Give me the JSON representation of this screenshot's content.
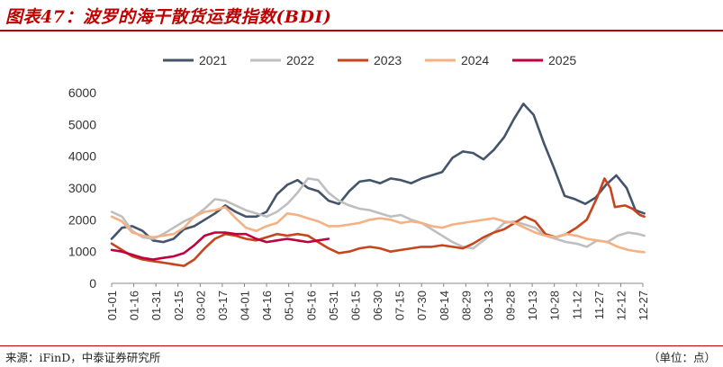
{
  "header": {
    "title": "图表47：波罗的海干散货运费指数(BDI)"
  },
  "footer": {
    "source": "来源：iFinD，中泰证券研究所",
    "unit": "（单位：点）"
  },
  "chart_data": {
    "type": "line",
    "title": "",
    "xlabel": "",
    "ylabel": "",
    "ylim": [
      0,
      6000
    ],
    "yticks": [
      0,
      1000,
      2000,
      3000,
      4000,
      5000,
      6000
    ],
    "x_axis": "day of year (MM-DD)",
    "xticks": [
      "01-01",
      "01-16",
      "01-31",
      "02-15",
      "03-02",
      "03-17",
      "04-01",
      "04-16",
      "05-01",
      "05-16",
      "05-31",
      "06-15",
      "06-30",
      "07-15",
      "07-30",
      "08-14",
      "08-29",
      "09-13",
      "09-28",
      "10-13",
      "10-28",
      "11-12",
      "11-27",
      "12-12",
      "12-27"
    ],
    "grid": false,
    "legend": "top",
    "series": [
      {
        "name": "2021",
        "color": "#44546a",
        "points": [
          [
            "01-01",
            1400
          ],
          [
            "01-08",
            1750
          ],
          [
            "01-15",
            1800
          ],
          [
            "01-22",
            1650
          ],
          [
            "01-29",
            1350
          ],
          [
            "02-05",
            1300
          ],
          [
            "02-12",
            1400
          ],
          [
            "02-19",
            1700
          ],
          [
            "02-26",
            1800
          ],
          [
            "03-05",
            2000
          ],
          [
            "03-12",
            2200
          ],
          [
            "03-19",
            2450
          ],
          [
            "03-26",
            2250
          ],
          [
            "04-02",
            2100
          ],
          [
            "04-09",
            2100
          ],
          [
            "04-16",
            2250
          ],
          [
            "04-23",
            2800
          ],
          [
            "04-30",
            3100
          ],
          [
            "05-07",
            3250
          ],
          [
            "05-14",
            3000
          ],
          [
            "05-21",
            2900
          ],
          [
            "05-28",
            2600
          ],
          [
            "06-04",
            2500
          ],
          [
            "06-11",
            2900
          ],
          [
            "06-18",
            3200
          ],
          [
            "06-25",
            3250
          ],
          [
            "07-02",
            3150
          ],
          [
            "07-09",
            3300
          ],
          [
            "07-16",
            3250
          ],
          [
            "07-23",
            3150
          ],
          [
            "07-30",
            3300
          ],
          [
            "08-06",
            3400
          ],
          [
            "08-13",
            3500
          ],
          [
            "08-20",
            3950
          ],
          [
            "08-27",
            4150
          ],
          [
            "09-03",
            4100
          ],
          [
            "09-10",
            3900
          ],
          [
            "09-17",
            4200
          ],
          [
            "09-24",
            4600
          ],
          [
            "10-01",
            5200
          ],
          [
            "10-07",
            5650
          ],
          [
            "10-14",
            5300
          ],
          [
            "10-21",
            4400
          ],
          [
            "10-28",
            3600
          ],
          [
            "11-04",
            2750
          ],
          [
            "11-11",
            2650
          ],
          [
            "11-18",
            2500
          ],
          [
            "11-25",
            2700
          ],
          [
            "12-02",
            3100
          ],
          [
            "12-09",
            3400
          ],
          [
            "12-16",
            3000
          ],
          [
            "12-22",
            2300
          ],
          [
            "12-28",
            2200
          ]
        ]
      },
      {
        "name": "2022",
        "color": "#bfbfbf",
        "points": [
          [
            "01-01",
            2250
          ],
          [
            "01-08",
            2100
          ],
          [
            "01-15",
            1650
          ],
          [
            "01-22",
            1450
          ],
          [
            "01-29",
            1400
          ],
          [
            "02-05",
            1550
          ],
          [
            "02-12",
            1750
          ],
          [
            "02-19",
            1950
          ],
          [
            "02-26",
            2100
          ],
          [
            "03-05",
            2350
          ],
          [
            "03-12",
            2650
          ],
          [
            "03-19",
            2600
          ],
          [
            "03-26",
            2450
          ],
          [
            "04-02",
            2300
          ],
          [
            "04-09",
            2200
          ],
          [
            "04-16",
            2100
          ],
          [
            "04-23",
            2250
          ],
          [
            "04-30",
            2500
          ],
          [
            "05-07",
            2850
          ],
          [
            "05-14",
            3300
          ],
          [
            "05-21",
            3250
          ],
          [
            "05-28",
            2850
          ],
          [
            "06-04",
            2600
          ],
          [
            "06-11",
            2450
          ],
          [
            "06-18",
            2350
          ],
          [
            "06-25",
            2300
          ],
          [
            "07-02",
            2200
          ],
          [
            "07-09",
            2100
          ],
          [
            "07-16",
            2150
          ],
          [
            "07-23",
            2000
          ],
          [
            "07-30",
            1900
          ],
          [
            "08-06",
            1700
          ],
          [
            "08-13",
            1500
          ],
          [
            "08-20",
            1300
          ],
          [
            "08-27",
            1150
          ],
          [
            "09-03",
            1100
          ],
          [
            "09-10",
            1350
          ],
          [
            "09-17",
            1600
          ],
          [
            "09-24",
            1900
          ],
          [
            "10-01",
            1950
          ],
          [
            "10-08",
            1850
          ],
          [
            "10-15",
            1750
          ],
          [
            "10-22",
            1500
          ],
          [
            "10-29",
            1400
          ],
          [
            "11-05",
            1300
          ],
          [
            "11-12",
            1250
          ],
          [
            "11-19",
            1150
          ],
          [
            "11-26",
            1350
          ],
          [
            "12-03",
            1300
          ],
          [
            "12-10",
            1500
          ],
          [
            "12-17",
            1600
          ],
          [
            "12-24",
            1550
          ],
          [
            "12-28",
            1500
          ]
        ]
      },
      {
        "name": "2023",
        "color": "#c5451c",
        "points": [
          [
            "01-01",
            1250
          ],
          [
            "01-08",
            1050
          ],
          [
            "01-15",
            850
          ],
          [
            "01-22",
            750
          ],
          [
            "01-29",
            700
          ],
          [
            "02-05",
            650
          ],
          [
            "02-12",
            600
          ],
          [
            "02-19",
            550
          ],
          [
            "02-26",
            750
          ],
          [
            "03-05",
            1100
          ],
          [
            "03-12",
            1400
          ],
          [
            "03-19",
            1550
          ],
          [
            "03-26",
            1500
          ],
          [
            "04-02",
            1400
          ],
          [
            "04-09",
            1350
          ],
          [
            "04-16",
            1450
          ],
          [
            "04-23",
            1550
          ],
          [
            "04-30",
            1500
          ],
          [
            "05-07",
            1550
          ],
          [
            "05-14",
            1500
          ],
          [
            "05-21",
            1300
          ],
          [
            "05-28",
            1100
          ],
          [
            "06-04",
            950
          ],
          [
            "06-11",
            1000
          ],
          [
            "06-18",
            1100
          ],
          [
            "06-25",
            1150
          ],
          [
            "07-02",
            1100
          ],
          [
            "07-09",
            1000
          ],
          [
            "07-16",
            1050
          ],
          [
            "07-23",
            1100
          ],
          [
            "07-30",
            1150
          ],
          [
            "08-06",
            1150
          ],
          [
            "08-13",
            1200
          ],
          [
            "08-20",
            1150
          ],
          [
            "08-27",
            1100
          ],
          [
            "09-03",
            1250
          ],
          [
            "09-10",
            1450
          ],
          [
            "09-17",
            1600
          ],
          [
            "09-24",
            1700
          ],
          [
            "10-01",
            1900
          ],
          [
            "10-08",
            2100
          ],
          [
            "10-15",
            1950
          ],
          [
            "10-22",
            1550
          ],
          [
            "10-29",
            1450
          ],
          [
            "11-05",
            1550
          ],
          [
            "11-12",
            1750
          ],
          [
            "11-19",
            2000
          ],
          [
            "11-26",
            2700
          ],
          [
            "12-01",
            3300
          ],
          [
            "12-05",
            3000
          ],
          [
            "12-08",
            2400
          ],
          [
            "12-15",
            2450
          ],
          [
            "12-20",
            2350
          ],
          [
            "12-25",
            2150
          ],
          [
            "12-28",
            2100
          ]
        ]
      },
      {
        "name": "2024",
        "color": "#f4b183",
        "points": [
          [
            "01-01",
            2100
          ],
          [
            "01-08",
            1950
          ],
          [
            "01-15",
            1600
          ],
          [
            "01-22",
            1500
          ],
          [
            "01-29",
            1450
          ],
          [
            "02-05",
            1500
          ],
          [
            "02-12",
            1550
          ],
          [
            "02-19",
            1750
          ],
          [
            "02-26",
            2100
          ],
          [
            "03-05",
            2250
          ],
          [
            "03-12",
            2300
          ],
          [
            "03-19",
            2400
          ],
          [
            "03-26",
            2050
          ],
          [
            "04-02",
            1750
          ],
          [
            "04-09",
            1650
          ],
          [
            "04-16",
            1800
          ],
          [
            "04-23",
            1900
          ],
          [
            "04-30",
            2200
          ],
          [
            "05-07",
            2150
          ],
          [
            "05-14",
            2050
          ],
          [
            "05-21",
            1950
          ],
          [
            "05-28",
            1800
          ],
          [
            "06-04",
            1800
          ],
          [
            "06-11",
            1850
          ],
          [
            "06-18",
            1900
          ],
          [
            "06-25",
            2000
          ],
          [
            "07-02",
            2050
          ],
          [
            "07-09",
            2000
          ],
          [
            "07-16",
            1900
          ],
          [
            "07-23",
            1950
          ],
          [
            "07-30",
            1900
          ],
          [
            "08-06",
            1800
          ],
          [
            "08-13",
            1750
          ],
          [
            "08-20",
            1850
          ],
          [
            "08-27",
            1900
          ],
          [
            "09-03",
            1950
          ],
          [
            "09-10",
            2000
          ],
          [
            "09-17",
            2050
          ],
          [
            "09-24",
            1950
          ],
          [
            "10-01",
            1900
          ],
          [
            "10-08",
            1750
          ],
          [
            "10-15",
            1600
          ],
          [
            "10-22",
            1500
          ],
          [
            "10-29",
            1450
          ],
          [
            "11-05",
            1550
          ],
          [
            "11-12",
            1500
          ],
          [
            "11-19",
            1400
          ],
          [
            "11-26",
            1350
          ],
          [
            "12-03",
            1300
          ],
          [
            "12-10",
            1150
          ],
          [
            "12-17",
            1050
          ],
          [
            "12-24",
            1000
          ],
          [
            "12-28",
            980
          ]
        ]
      },
      {
        "name": "2025",
        "color": "#c00040",
        "points": [
          [
            "01-01",
            1050
          ],
          [
            "01-08",
            1000
          ],
          [
            "01-15",
            900
          ],
          [
            "01-22",
            800
          ],
          [
            "01-29",
            750
          ],
          [
            "02-05",
            800
          ],
          [
            "02-12",
            850
          ],
          [
            "02-19",
            950
          ],
          [
            "02-26",
            1200
          ],
          [
            "03-05",
            1500
          ],
          [
            "03-12",
            1600
          ],
          [
            "03-19",
            1600
          ],
          [
            "03-26",
            1550
          ],
          [
            "04-02",
            1550
          ],
          [
            "04-09",
            1400
          ],
          [
            "04-16",
            1300
          ],
          [
            "04-23",
            1350
          ],
          [
            "04-30",
            1400
          ],
          [
            "05-07",
            1350
          ],
          [
            "05-14",
            1300
          ],
          [
            "05-21",
            1350
          ],
          [
            "05-28",
            1400
          ]
        ]
      }
    ]
  }
}
